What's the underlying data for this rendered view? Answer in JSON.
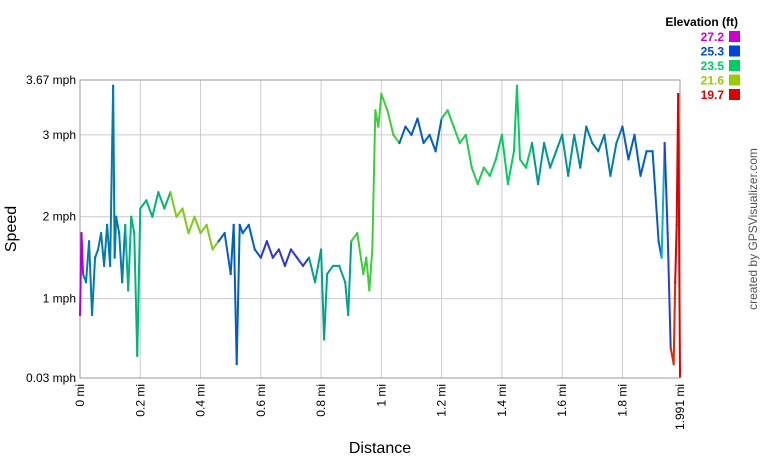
{
  "chart_data": {
    "type": "line",
    "xlabel": "Distance",
    "ylabel": "Speed",
    "x_unit": "mi",
    "y_unit": "mph",
    "xlim": [
      0,
      1.991
    ],
    "ylim": [
      0.03,
      3.67
    ],
    "x_ticks": [
      "0 mi",
      "0.2 mi",
      "0.4 mi",
      "0.6 mi",
      "0.8 mi",
      "1 mi",
      "1.2 mi",
      "1.4 mi",
      "1.6 mi",
      "1.8 mi",
      "1.991 mi"
    ],
    "y_ticks": [
      "0.03 mph",
      "1 mph",
      "2 mph",
      "3 mph",
      "3.67 mph"
    ],
    "grid": true,
    "color_by": "Elevation (ft)",
    "legend": {
      "title": "Elevation (ft)",
      "placement": "top-right",
      "entries": [
        {
          "label": "27.2",
          "color": "#cc00cc"
        },
        {
          "label": "25.3",
          "color": "#0044dd"
        },
        {
          "label": "23.5",
          "color": "#00cc66"
        },
        {
          "label": "21.6",
          "color": "#99cc00"
        },
        {
          "label": "19.7",
          "color": "#dd0000"
        }
      ]
    },
    "series": [
      {
        "x": [
          0,
          0.005,
          0.01,
          0.02,
          0.03,
          0.04,
          0.05,
          0.06,
          0.07,
          0.08,
          0.09,
          0.1,
          0.11,
          0.115,
          0.12,
          0.13,
          0.14,
          0.15,
          0.16,
          0.17,
          0.18,
          0.19,
          0.2,
          0.22,
          0.24,
          0.26,
          0.28,
          0.3,
          0.32,
          0.34,
          0.36,
          0.38,
          0.4,
          0.42,
          0.44,
          0.46,
          0.48,
          0.5,
          0.51,
          0.52,
          0.53,
          0.54,
          0.56,
          0.58,
          0.6,
          0.62,
          0.64,
          0.66,
          0.68,
          0.7,
          0.72,
          0.74,
          0.76,
          0.78,
          0.8,
          0.81,
          0.82,
          0.84,
          0.86,
          0.88,
          0.89,
          0.9,
          0.92,
          0.94,
          0.95,
          0.96,
          0.97,
          0.98,
          0.99,
          1.0,
          1.02,
          1.04,
          1.06,
          1.08,
          1.1,
          1.12,
          1.14,
          1.16,
          1.18,
          1.2,
          1.22,
          1.24,
          1.26,
          1.28,
          1.3,
          1.32,
          1.34,
          1.36,
          1.38,
          1.4,
          1.42,
          1.44,
          1.45,
          1.46,
          1.48,
          1.5,
          1.52,
          1.54,
          1.56,
          1.58,
          1.6,
          1.62,
          1.64,
          1.66,
          1.68,
          1.7,
          1.72,
          1.74,
          1.76,
          1.78,
          1.8,
          1.82,
          1.84,
          1.86,
          1.88,
          1.9,
          1.92,
          1.93,
          1.94,
          1.95,
          1.96,
          1.97,
          1.975,
          1.98,
          1.985,
          1.991
        ],
        "y": [
          0.8,
          1.8,
          1.3,
          1.2,
          1.7,
          0.8,
          1.5,
          1.6,
          1.8,
          1.4,
          1.9,
          1.4,
          3.6,
          1.5,
          2.0,
          1.8,
          1.2,
          1.9,
          1.1,
          2.0,
          1.8,
          0.3,
          2.1,
          2.2,
          2.0,
          2.3,
          2.1,
          2.3,
          2.0,
          2.1,
          1.8,
          2.0,
          1.8,
          1.9,
          1.6,
          1.7,
          1.8,
          1.3,
          1.9,
          0.2,
          1.9,
          1.8,
          1.9,
          1.6,
          1.5,
          1.7,
          1.5,
          1.6,
          1.4,
          1.6,
          1.5,
          1.4,
          1.5,
          1.2,
          1.6,
          0.5,
          1.3,
          1.4,
          1.4,
          1.2,
          0.8,
          1.7,
          1.8,
          1.3,
          1.5,
          1.1,
          1.6,
          3.3,
          3.1,
          3.5,
          3.3,
          3.0,
          2.9,
          3.1,
          3.0,
          3.2,
          2.9,
          3.0,
          2.8,
          3.2,
          3.3,
          3.1,
          2.9,
          3.0,
          2.6,
          2.4,
          2.6,
          2.5,
          2.7,
          3.0,
          2.4,
          2.8,
          3.6,
          2.7,
          2.6,
          2.9,
          2.4,
          2.9,
          2.6,
          2.8,
          3.0,
          2.5,
          3.0,
          2.6,
          3.1,
          2.9,
          2.8,
          3.0,
          2.5,
          2.9,
          3.1,
          2.7,
          3.0,
          2.5,
          2.8,
          2.8,
          1.7,
          1.5,
          2.9,
          1.8,
          0.4,
          0.2,
          1.2,
          1.9,
          3.5,
          0.05
        ]
      }
    ]
  },
  "credit": "created by GPSVisualizer.com"
}
